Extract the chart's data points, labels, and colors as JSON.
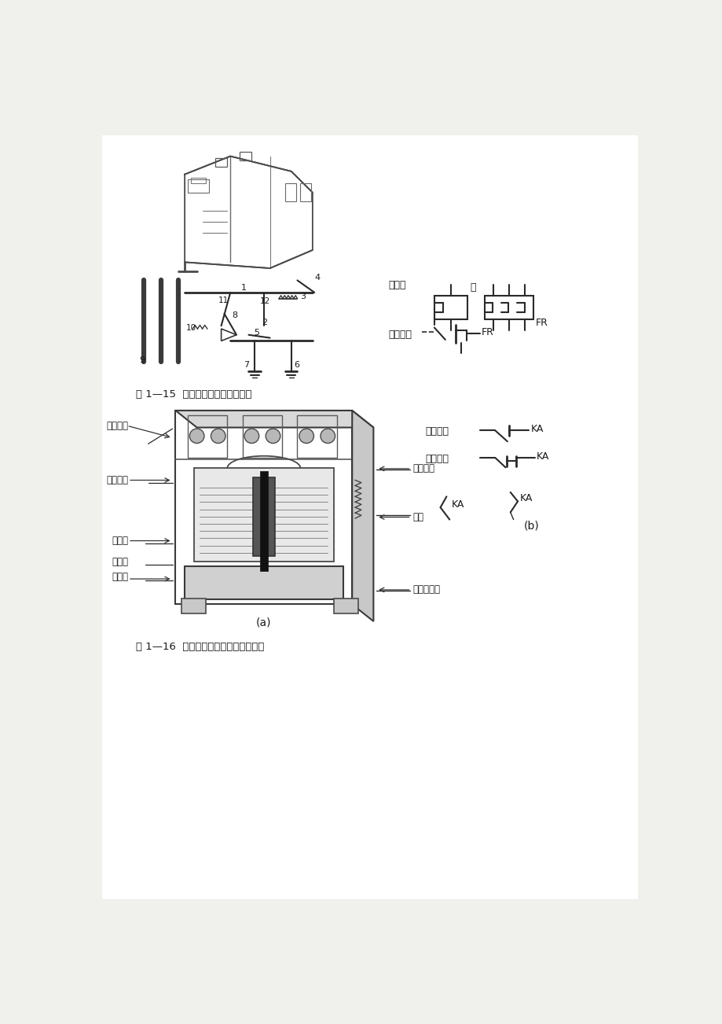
{
  "fig_caption1": "图 1—15  热继电器结构及图形符号",
  "fig_caption2": "图 1—16  中间继电器的结构及图形符号",
  "label_a": "(a)",
  "label_b": "(b)",
  "text_热元件": "热元件",
  "text_或": "或",
  "text_常闭触头": "常闭触头",
  "text_FR": "FR",
  "text_KA": "KA",
  "text_常开触头_relay": "常开触头",
  "text_常闭触头_relay": "常闭触头",
  "text_复位弹簧": "复位弹簧",
  "text_线圈": "线圈",
  "text_动铁心": "动铁心",
  "text_短路环": "短路环",
  "text_静铁心": "静铁心",
  "text_反作用弹簧": "反作用弹簧",
  "text_常闭触头_top": "常闭触头",
  "text_常开触头_left": "常开触头",
  "page_bg": "#f0f0ed"
}
